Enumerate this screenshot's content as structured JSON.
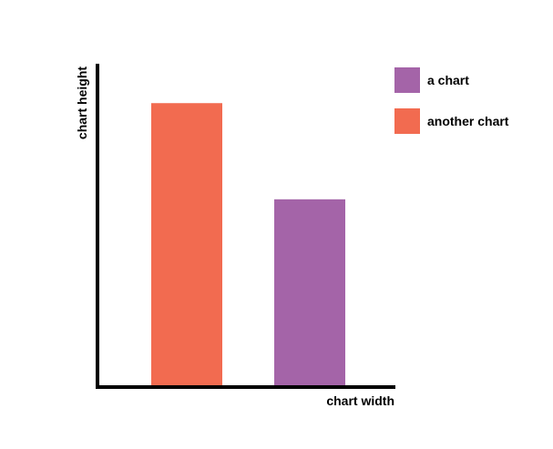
{
  "chart_data": {
    "type": "bar",
    "title": "",
    "xlabel": "chart width",
    "ylabel": "chart height",
    "ylim": [
      0,
      100
    ],
    "grid": false,
    "legend_position": "top-right",
    "bars": [
      {
        "series": "another chart",
        "value": 88,
        "color": "#f26b50"
      },
      {
        "series": "a chart",
        "value": 58,
        "color": "#a464a8"
      }
    ],
    "legend": [
      {
        "label": "a chart",
        "color": "#a464a8"
      },
      {
        "label": "another chart",
        "color": "#f26b50"
      }
    ]
  }
}
